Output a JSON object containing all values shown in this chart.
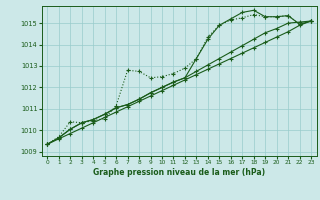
{
  "title": "Graphe pression niveau de la mer (hPa)",
  "background_color": "#cce8e8",
  "grid_color": "#99cccc",
  "line_color": "#1a5c1a",
  "xlim": [
    -0.5,
    23.5
  ],
  "ylim": [
    1008.8,
    1015.8
  ],
  "yticks": [
    1009,
    1010,
    1011,
    1012,
    1013,
    1014,
    1015
  ],
  "xticks": [
    0,
    1,
    2,
    3,
    4,
    5,
    6,
    7,
    8,
    9,
    10,
    11,
    12,
    13,
    14,
    15,
    16,
    17,
    18,
    19,
    20,
    21,
    22,
    23
  ],
  "series": [
    {
      "x": [
        0,
        1,
        2,
        3,
        4,
        5,
        6,
        7,
        8,
        9,
        10,
        11,
        12,
        13,
        14,
        15,
        16,
        17,
        18,
        19,
        20,
        21,
        22,
        23
      ],
      "y": [
        1009.35,
        1009.7,
        1010.4,
        1010.35,
        1010.45,
        1010.55,
        1011.15,
        1012.8,
        1012.75,
        1012.45,
        1012.5,
        1012.65,
        1012.9,
        1013.35,
        1014.35,
        1014.9,
        1015.15,
        1015.25,
        1015.4,
        1015.3,
        1015.3,
        1015.35,
        1014.95,
        1015.1
      ],
      "style": ":",
      "marker": "+"
    },
    {
      "x": [
        0,
        1,
        2,
        3,
        4,
        5,
        6,
        7,
        8,
        9,
        10,
        11,
        12,
        13,
        14,
        15,
        16,
        17,
        18,
        19,
        20,
        21,
        22,
        23
      ],
      "y": [
        1009.35,
        1009.65,
        1010.05,
        1010.35,
        1010.5,
        1010.75,
        1011.05,
        1011.2,
        1011.45,
        1011.75,
        1012.0,
        1012.25,
        1012.45,
        1012.75,
        1013.05,
        1013.35,
        1013.65,
        1013.95,
        1014.25,
        1014.55,
        1014.75,
        1015.0,
        1015.05,
        1015.1
      ],
      "style": "-",
      "marker": "+"
    },
    {
      "x": [
        0,
        1,
        2,
        3,
        4,
        5,
        6,
        7,
        8,
        9,
        10,
        11,
        12,
        13,
        14,
        15,
        16,
        17,
        18,
        19,
        20,
        21,
        22,
        23
      ],
      "y": [
        1009.35,
        1009.6,
        1009.85,
        1010.1,
        1010.35,
        1010.6,
        1010.85,
        1011.1,
        1011.35,
        1011.6,
        1011.85,
        1012.1,
        1012.35,
        1012.6,
        1012.85,
        1013.1,
        1013.35,
        1013.6,
        1013.85,
        1014.1,
        1014.35,
        1014.6,
        1014.9,
        1015.1
      ],
      "style": "-",
      "marker": "+"
    },
    {
      "x": [
        0,
        1,
        2,
        3,
        4,
        5,
        6,
        7,
        8,
        9,
        10,
        11,
        12,
        13,
        14,
        15,
        16,
        17,
        18,
        19,
        20,
        21,
        22,
        23
      ],
      "y": [
        1009.35,
        1009.65,
        1010.05,
        1010.35,
        1010.5,
        1010.75,
        1011.05,
        1011.2,
        1011.45,
        1011.75,
        1012.0,
        1012.25,
        1012.45,
        1013.35,
        1014.25,
        1014.9,
        1015.2,
        1015.5,
        1015.6,
        1015.3,
        1015.3,
        1015.35,
        1014.95,
        1015.1
      ],
      "style": "-",
      "marker": "+"
    }
  ]
}
